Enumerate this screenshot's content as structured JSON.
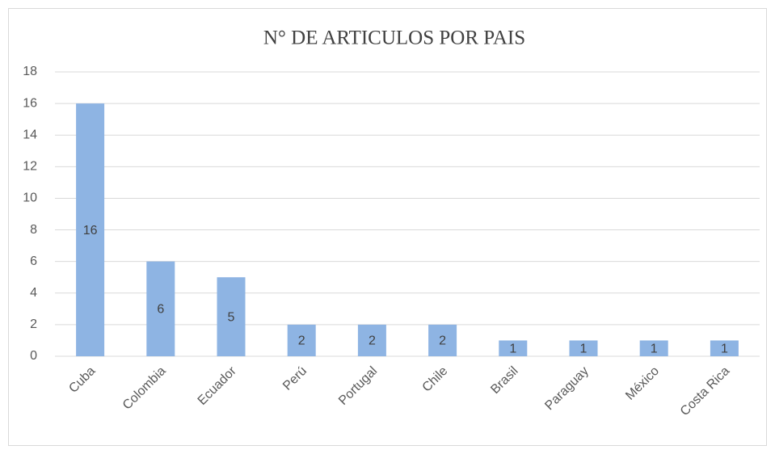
{
  "chart_data": {
    "type": "bar",
    "title": "N° DE ARTICULOS POR PAIS",
    "categories": [
      "Cuba",
      "Colombia",
      "Ecuador",
      "Perú",
      "Portugal",
      "Chile",
      "Brasil",
      "Paraguay",
      "México",
      "Costa Rica"
    ],
    "values": [
      16,
      6,
      5,
      2,
      2,
      2,
      1,
      1,
      1,
      1
    ],
    "color": "#8eb4e3",
    "ylim": [
      0,
      18
    ],
    "yticks": [
      0,
      2,
      4,
      6,
      8,
      10,
      12,
      14,
      16,
      18
    ],
    "grid": true,
    "data_labels": true
  }
}
